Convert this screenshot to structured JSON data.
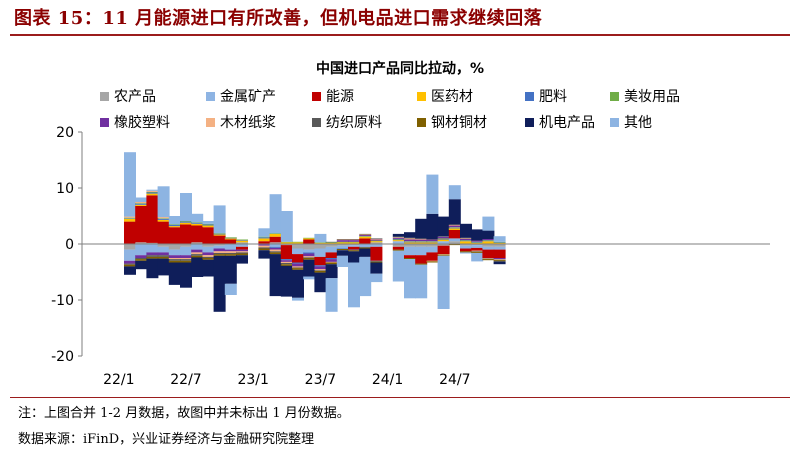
{
  "figure": {
    "title": "图表 15：11 月能源进口有所改善，但机电品进口需求继续回落",
    "note": "注：上图合并 1-2 月数据，故图中并未标出 1 月份数据。",
    "source": "数据来源：iFinD，兴业证券经济与金融研究院整理"
  },
  "chart_data": {
    "type": "bar",
    "stacked": true,
    "title": "中国进口产品同比拉动，%",
    "xlabel": "",
    "ylabel": "",
    "ylim": [
      -20,
      20
    ],
    "yticks": [
      "20",
      "10",
      "0",
      "-10",
      "-20"
    ],
    "xtick_labels": [
      "22/1",
      "22/7",
      "23/1",
      "23/7",
      "24/1",
      "24/7"
    ],
    "legend_position": "top",
    "categories": [
      "22/2",
      "22/3",
      "22/4",
      "22/5",
      "22/6",
      "22/7",
      "22/8",
      "22/9",
      "22/10",
      "22/11",
      "22/12",
      "23/2",
      "23/3",
      "23/4",
      "23/5",
      "23/6",
      "23/7",
      "23/8",
      "23/9",
      "23/10",
      "23/11",
      "23/12",
      "24/2",
      "24/3",
      "24/4",
      "24/5",
      "24/6",
      "24/7",
      "24/8",
      "24/9",
      "24/10",
      "24/11"
    ],
    "series": [
      {
        "name": "农产品",
        "color": "#a6a6a6",
        "values": [
          -1.0,
          0.3,
          0.2,
          -0.5,
          -1.0,
          -0.5,
          0.3,
          -0.5,
          -0.3,
          0,
          0.3,
          0,
          0.3,
          -0.2,
          -0.8,
          -1.0,
          -0.8,
          -0.5,
          -0.3,
          -0.2,
          0,
          0.3,
          -0.5,
          -0.5,
          -0.5,
          -0.5,
          -0.3,
          0.5,
          -0.3,
          -0.2,
          -0.5,
          -0.5
        ]
      },
      {
        "name": "金属矿产",
        "color": "#8eb4e3",
        "values": [
          -2.0,
          -2.0,
          -1.5,
          -1.0,
          -1.0,
          -1.5,
          -1.0,
          -1.0,
          -0.5,
          -1.0,
          -0.5,
          0,
          -0.5,
          0,
          -1.0,
          -0.5,
          -1.5,
          -1.0,
          -0.5,
          -0.3,
          -0.5,
          -0.5,
          0.5,
          -1.5,
          -1.5,
          -1.0,
          0.5,
          0.5,
          -0.5,
          -0.5,
          -0.5,
          -0.5
        ]
      },
      {
        "name": "能源",
        "color": "#c00000",
        "values": [
          4.0,
          6.5,
          8.5,
          4.0,
          3.0,
          3.5,
          3.0,
          3.0,
          1.5,
          0.8,
          -0.5,
          0.5,
          1.0,
          -2.5,
          -1.5,
          0.8,
          -1.5,
          -1.0,
          0,
          -0.5,
          1.0,
          -2.5,
          -0.5,
          -0.5,
          -1.5,
          -1.5,
          -1.5,
          1.5,
          -0.5,
          -0.5,
          -1.5,
          -1.5
        ]
      },
      {
        "name": "医药材",
        "color": "#ffc000",
        "values": [
          0.5,
          0.2,
          0.3,
          0.3,
          0.2,
          0.3,
          0.3,
          0.3,
          0.2,
          0.2,
          0.3,
          0.5,
          0.5,
          0.3,
          0.3,
          0.2,
          0.2,
          0.2,
          0.3,
          0.3,
          0.3,
          0.2,
          0.2,
          0.3,
          0.3,
          0.3,
          0.3,
          0.3,
          0.5,
          0.2,
          0.5,
          0.2
        ]
      },
      {
        "name": "肥料",
        "color": "#4472c4",
        "values": [
          0.1,
          0.2,
          0.2,
          0.2,
          0.2,
          0.2,
          0.2,
          0.2,
          0.1,
          0.1,
          0.1,
          0.2,
          -0.2,
          -0.2,
          -0.2,
          -0.2,
          -0.2,
          -0.2,
          -0.1,
          -0.1,
          -0.1,
          -0.1,
          0.1,
          0.1,
          0.1,
          0.1,
          0.1,
          0.1,
          0.1,
          0.1,
          0.1,
          0.1
        ]
      },
      {
        "name": "美妆用品",
        "color": "#70ad47",
        "values": [
          0.1,
          0.1,
          0.1,
          0.1,
          0.1,
          0.1,
          0.1,
          0.1,
          0.1,
          0.1,
          0.1,
          0.1,
          0.1,
          0.1,
          0.1,
          0.1,
          0.1,
          0.1,
          0.1,
          0.1,
          0.1,
          0.1,
          0.1,
          0.1,
          0.1,
          0.1,
          0.1,
          0.1,
          0.1,
          0.1,
          0.1,
          0.1
        ]
      },
      {
        "name": "橡胶塑料",
        "color": "#7030a0",
        "values": [
          -0.5,
          -0.5,
          -0.5,
          -0.5,
          -0.5,
          -0.5,
          -0.5,
          -0.5,
          -0.5,
          -0.3,
          -0.3,
          -0.3,
          -0.3,
          -0.3,
          -0.5,
          -0.5,
          -0.5,
          -0.5,
          0.3,
          0.3,
          0.2,
          0.2,
          0.2,
          0.3,
          0.3,
          0.3,
          0.3,
          0.3,
          0.2,
          0.2,
          0.2,
          -0.2
        ]
      },
      {
        "name": "木材纸浆",
        "color": "#f4b183",
        "values": [
          0.2,
          0.2,
          0.2,
          0.2,
          -0.2,
          -0.2,
          -0.3,
          -0.3,
          -0.3,
          -0.3,
          -0.2,
          -0.3,
          -0.3,
          -0.2,
          -0.2,
          -0.2,
          -0.2,
          -0.1,
          0.1,
          0.1,
          0.1,
          0.1,
          0.1,
          0.2,
          0.1,
          -0.1,
          -0.1,
          0.1,
          0.1,
          -0.1,
          -0.1,
          -0.1
        ]
      },
      {
        "name": "纺织原料",
        "color": "#595959",
        "values": [
          -0.2,
          -0.2,
          -0.3,
          -0.3,
          -0.3,
          -0.3,
          -0.3,
          -0.2,
          -0.2,
          -0.2,
          -0.2,
          -0.2,
          -0.2,
          -0.2,
          -0.1,
          -0.1,
          -0.1,
          0.1,
          0.1,
          0.1,
          0.1,
          0.1,
          0.1,
          0.1,
          0.1,
          0.1,
          0.1,
          0.1,
          0.1,
          -0.1,
          -0.1,
          -0.1
        ]
      },
      {
        "name": "钢材铜材",
        "color": "#7f6000",
        "values": [
          -0.3,
          -0.3,
          -0.3,
          -0.3,
          -0.3,
          -0.3,
          -0.3,
          -0.3,
          -0.3,
          -0.3,
          -0.3,
          -0.3,
          -0.3,
          -0.3,
          -0.3,
          -0.3,
          -0.3,
          -0.3,
          -0.2,
          -0.2,
          -0.2,
          -0.2,
          -0.2,
          -0.2,
          -0.2,
          -0.2,
          -0.2,
          -0.2,
          -0.2,
          -0.2,
          -0.2,
          -0.2
        ]
      },
      {
        "name": "机电产品",
        "color": "#0f1e5a",
        "values": [
          -1.5,
          -1.5,
          -3.5,
          -3.0,
          -4.0,
          -4.5,
          -3.5,
          -3.0,
          -10.0,
          -5.0,
          -1.5,
          -1.5,
          -7.5,
          -5.5,
          -5.0,
          -3.0,
          -3.5,
          -2.5,
          -1.0,
          -2.0,
          -1.5,
          -2.0,
          0.5,
          1.0,
          3.5,
          4.5,
          3.5,
          4.5,
          2.5,
          2.0,
          1.5,
          -0.5
        ]
      },
      {
        "name": "其他",
        "color": "#8db4e2",
        "values": [
          11.5,
          0.8,
          0.2,
          5.5,
          1.5,
          5.0,
          1.5,
          0.5,
          5.0,
          -2.0,
          0,
          1.5,
          7.0,
          5.5,
          -0.5,
          -0.5,
          1.5,
          -6.0,
          -2.0,
          -8.0,
          -7.0,
          -1.5,
          -5.5,
          -7.0,
          -6.0,
          7.0,
          -9.5,
          2.5,
          -0.2,
          -1.5,
          2.5,
          1.0
        ]
      }
    ]
  }
}
